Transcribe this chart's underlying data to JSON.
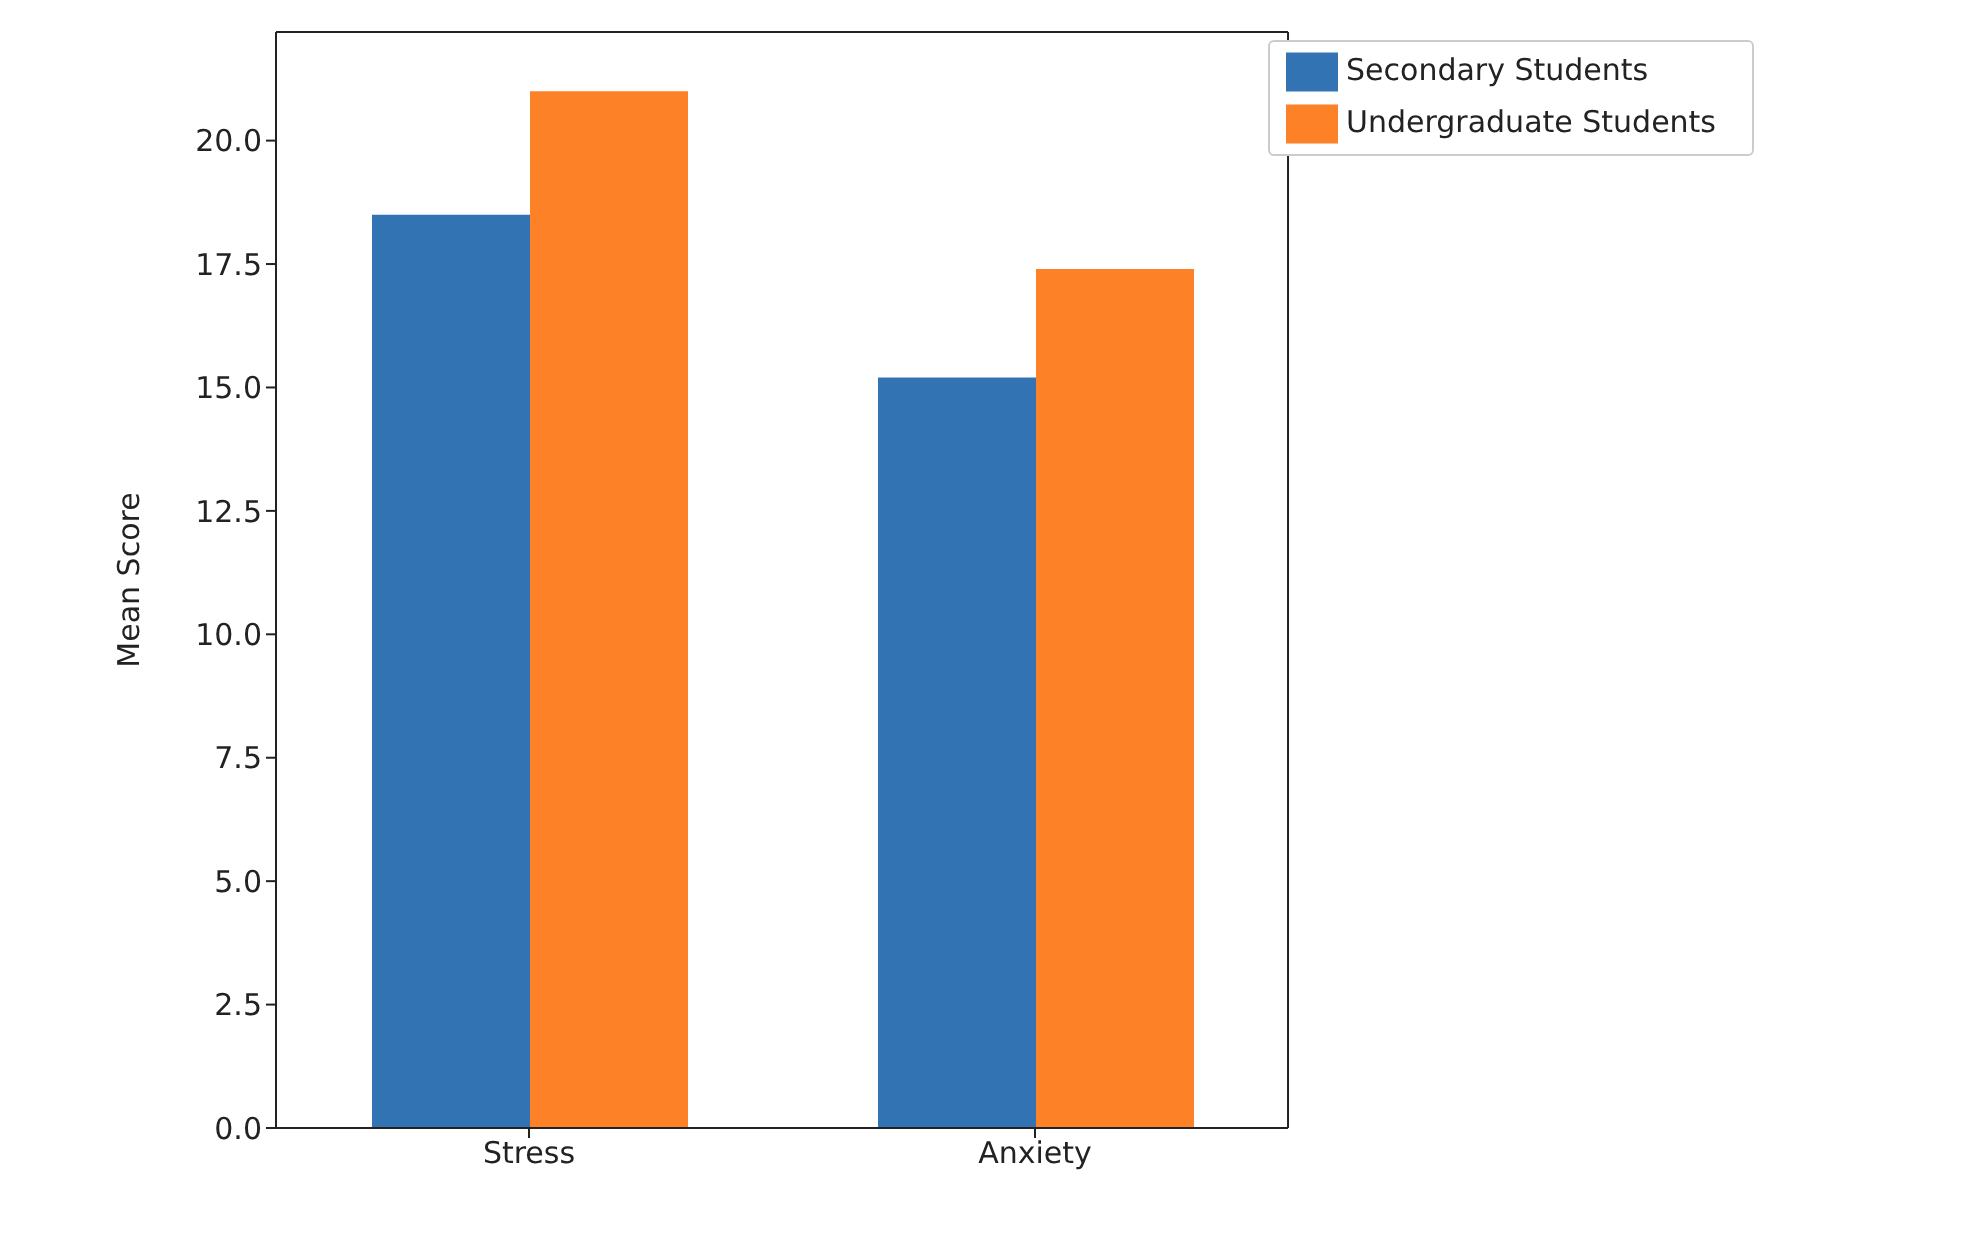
{
  "chart_data": {
    "type": "bar",
    "ylabel": "Mean Score",
    "categories": [
      "Stress",
      "Anxiety"
    ],
    "series": [
      {
        "name": "Secondary Students",
        "color": "#3274b3",
        "values": [
          18.5,
          15.2
        ]
      },
      {
        "name": "Undergraduate Students",
        "color": "#fd8127",
        "values": [
          21.0,
          17.4
        ]
      }
    ],
    "ylim": [
      0,
      22.2
    ],
    "yticks": [
      {
        "value": 0,
        "label": "0.0"
      },
      {
        "value": 2.5,
        "label": "2.5"
      },
      {
        "value": 5,
        "label": "5.0"
      },
      {
        "value": 7.5,
        "label": "7.5"
      },
      {
        "value": 10,
        "label": "10.0"
      },
      {
        "value": 12.5,
        "label": "12.5"
      },
      {
        "value": 15,
        "label": "15.0"
      },
      {
        "value": 17.5,
        "label": "17.5"
      },
      {
        "value": 20,
        "label": "20.0"
      }
    ],
    "grid": false,
    "legend": "top right"
  }
}
